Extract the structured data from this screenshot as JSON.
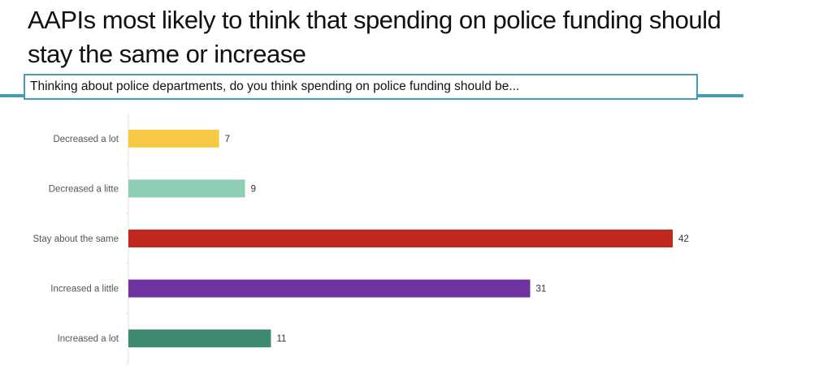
{
  "title": "AAPIs most likely to think that spending on police funding should stay the same or increase",
  "question": "Thinking about police departments, do you think spending on police funding should be...",
  "chart_data": {
    "type": "bar",
    "orientation": "horizontal",
    "categories": [
      "Decreased a lot",
      "Decreased a litte",
      "Stay about the same",
      "Increased a little",
      "Increased a lot"
    ],
    "values": [
      7,
      9,
      42,
      31,
      11
    ],
    "colors": [
      "#f6c945",
      "#8fcdb5",
      "#c0291f",
      "#7133a0",
      "#3e8a70"
    ],
    "xlim": [
      0,
      42
    ],
    "grid": false,
    "data_labels": true
  }
}
